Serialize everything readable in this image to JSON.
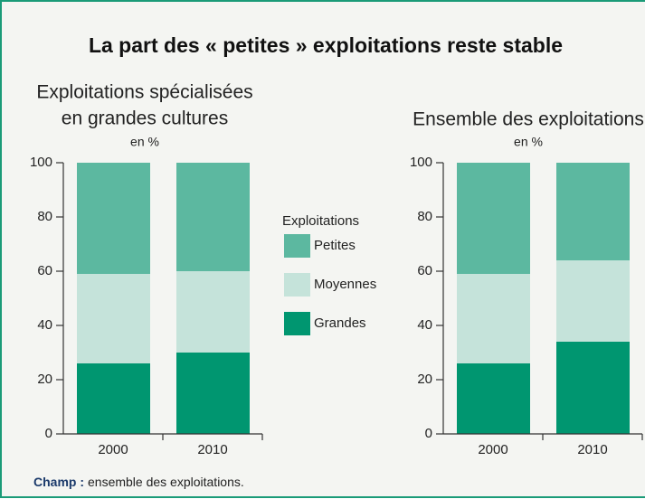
{
  "title": "La part des « petites » exploitations reste stable",
  "legend": {
    "title": "Exploitations"
  },
  "note": {
    "label": "Champ :",
    "text": "ensemble des exploitations."
  },
  "chart_data": [
    {
      "type": "bar",
      "stacked": true,
      "title": [
        "Exploitations spécialisées",
        "en grandes cultures"
      ],
      "unit": "en %",
      "categories": [
        "2000",
        "2010"
      ],
      "series": [
        {
          "name": "Grandes",
          "color": "#009670",
          "values": [
            26,
            30
          ]
        },
        {
          "name": "Moyennes",
          "color": "#c5e3da",
          "values": [
            33,
            30
          ]
        },
        {
          "name": "Petites",
          "color": "#5cb8a0",
          "values": [
            41,
            40
          ]
        }
      ],
      "ylim": [
        0,
        100
      ],
      "yticks": [
        0,
        20,
        40,
        60,
        80,
        100
      ]
    },
    {
      "type": "bar",
      "stacked": true,
      "title": [
        "Ensemble des exploitations"
      ],
      "unit": "en %",
      "categories": [
        "2000",
        "2010"
      ],
      "series": [
        {
          "name": "Grandes",
          "color": "#009670",
          "values": [
            26,
            34
          ]
        },
        {
          "name": "Moyennes",
          "color": "#c5e3da",
          "values": [
            33,
            30
          ]
        },
        {
          "name": "Petites",
          "color": "#5cb8a0",
          "values": [
            41,
            36
          ]
        }
      ],
      "ylim": [
        0,
        100
      ],
      "yticks": [
        0,
        20,
        40,
        60,
        80,
        100
      ]
    }
  ]
}
